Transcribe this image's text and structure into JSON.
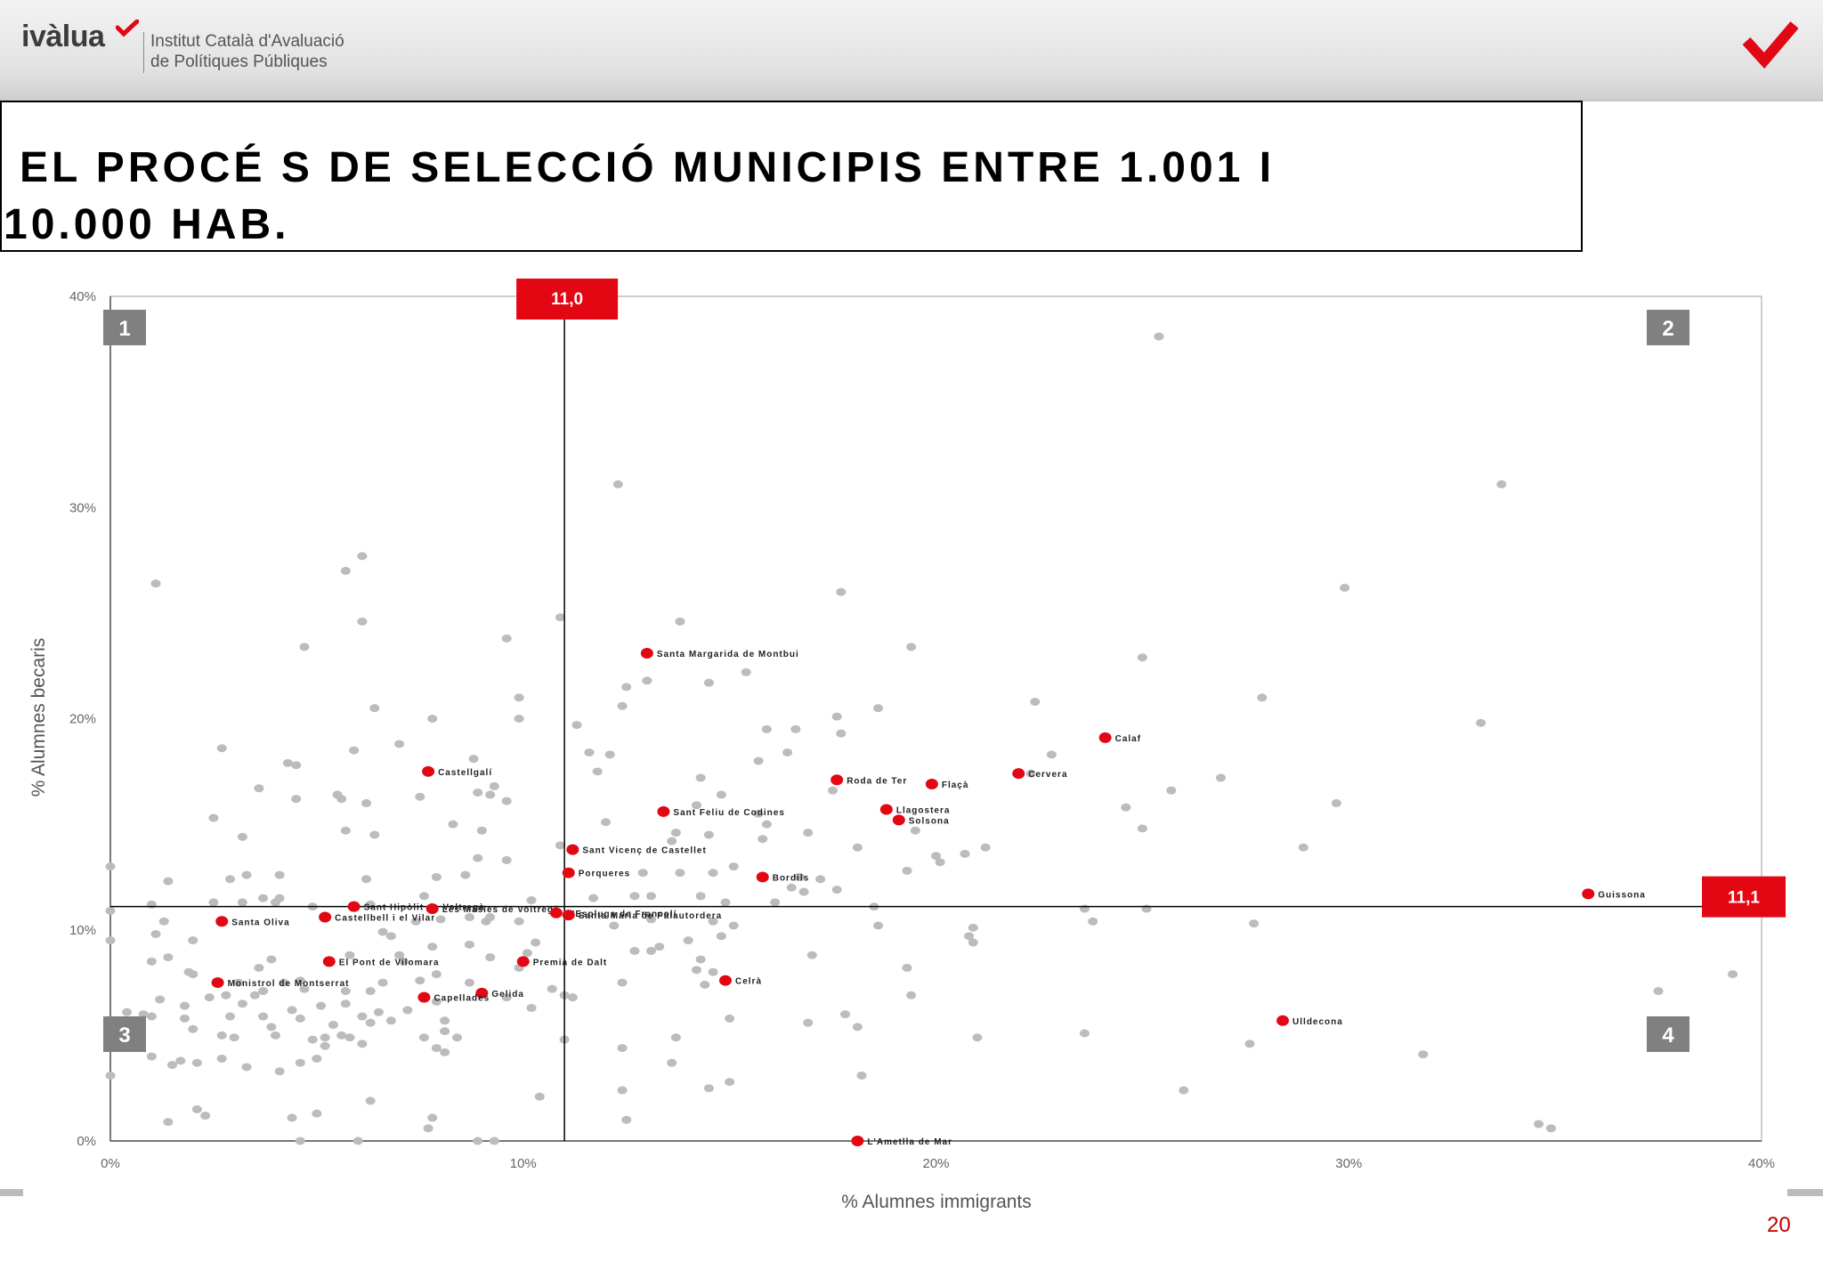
{
  "header": {
    "logo_text": "ivàlua",
    "institution_line1": "Institut Català d'Avaluació",
    "institution_line2": "de Polítiques Públiques"
  },
  "title": {
    "line1": "EL PROCÉ S DE SELECCIÓ MUNICIPIS ENTRE 1.001 I",
    "line2": "10.000 HAB."
  },
  "page_number": "20",
  "colors": {
    "accent": "#e30613",
    "grey_point": "#bcbcbc",
    "red_point": "#e30613"
  },
  "chart_data": {
    "type": "scatter",
    "xlabel": "% Alumnes immigrants",
    "ylabel": "% Alumnes becaris",
    "xlim": [
      0,
      40
    ],
    "ylim": [
      0,
      40
    ],
    "x_ticks": [
      "0%",
      "10%",
      "20%",
      "30%",
      "40%"
    ],
    "y_ticks": [
      "0%",
      "10%",
      "20%",
      "30%",
      "40%"
    ],
    "grid": false,
    "threshold_x": {
      "value": 11.0,
      "label": "11,0"
    },
    "threshold_y": {
      "value": 11.1,
      "label": "11,1"
    },
    "quadrants": [
      "1",
      "2",
      "3",
      "4"
    ],
    "highlighted": [
      {
        "name": "Santa Margarida de Montbui",
        "x": 13.0,
        "y": 23.1
      },
      {
        "name": "Calaf",
        "x": 24.1,
        "y": 19.1
      },
      {
        "name": "Roda de Ter",
        "x": 17.6,
        "y": 17.1
      },
      {
        "name": "Flaçà",
        "x": 19.9,
        "y": 16.9
      },
      {
        "name": "Cervera",
        "x": 22.0,
        "y": 17.4
      },
      {
        "name": "Castellgalí",
        "x": 7.7,
        "y": 17.5
      },
      {
        "name": "Sant Feliu de Codines",
        "x": 13.4,
        "y": 15.6
      },
      {
        "name": "Llagostera",
        "x": 18.8,
        "y": 15.7
      },
      {
        "name": "Solsona",
        "x": 19.1,
        "y": 15.2
      },
      {
        "name": "Sant Vicenç de Castellet",
        "x": 11.2,
        "y": 13.8
      },
      {
        "name": "Porqueres",
        "x": 11.1,
        "y": 12.7
      },
      {
        "name": "Bordils",
        "x": 15.8,
        "y": 12.5
      },
      {
        "name": "Sant Hipòlit de Voltregà",
        "x": 5.9,
        "y": 11.1
      },
      {
        "name": "Les Masies de Voltregà",
        "x": 7.8,
        "y": 11.0
      },
      {
        "name": "Santa Oliva",
        "x": 2.7,
        "y": 10.4
      },
      {
        "name": "L'Espluga de Francolí",
        "x": 10.8,
        "y": 10.8
      },
      {
        "name": "Santa Maria de Palautordera",
        "x": 11.1,
        "y": 10.7
      },
      {
        "name": "Castellbell i el Vilar",
        "x": 5.2,
        "y": 10.6
      },
      {
        "name": "Premià de Dalt",
        "x": 10.0,
        "y": 8.5
      },
      {
        "name": "El Pont de Vilomara",
        "x": 5.3,
        "y": 8.5
      },
      {
        "name": "Celrà",
        "x": 14.9,
        "y": 7.6
      },
      {
        "name": "Monistrol de Montserrat",
        "x": 2.6,
        "y": 7.5
      },
      {
        "name": "Gelida",
        "x": 9.0,
        "y": 7.0
      },
      {
        "name": "Capellades",
        "x": 7.6,
        "y": 6.8
      },
      {
        "name": "Guissona",
        "x": 35.8,
        "y": 11.7
      },
      {
        "name": "Ulldecona",
        "x": 28.4,
        "y": 5.7
      },
      {
        "name": "L'Ametlla de Mar",
        "x": 18.1,
        "y": 0.0
      }
    ],
    "others": [
      [
        1.1,
        26.4
      ],
      [
        6.1,
        27.7
      ],
      [
        5.7,
        27.0
      ],
      [
        6.1,
        24.6
      ],
      [
        4.7,
        23.4
      ],
      [
        12.3,
        31.1
      ],
      [
        33.7,
        31.1
      ],
      [
        25.4,
        38.1
      ],
      [
        13.8,
        24.6
      ],
      [
        17.7,
        26.0
      ],
      [
        19.4,
        23.4
      ],
      [
        25.0,
        22.9
      ],
      [
        29.9,
        26.2
      ],
      [
        27.9,
        21.0
      ],
      [
        22.4,
        20.8
      ],
      [
        15.4,
        22.2
      ],
      [
        14.5,
        21.7
      ],
      [
        12.5,
        21.5
      ],
      [
        13.0,
        21.8
      ],
      [
        12.4,
        20.6
      ],
      [
        9.9,
        21.0
      ],
      [
        9.6,
        23.8
      ],
      [
        10.9,
        24.8
      ],
      [
        6.4,
        20.5
      ],
      [
        7.8,
        20.0
      ],
      [
        9.9,
        20.0
      ],
      [
        11.3,
        19.7
      ],
      [
        15.9,
        19.5
      ],
      [
        16.6,
        19.5
      ],
      [
        17.6,
        20.1
      ],
      [
        17.7,
        19.3
      ],
      [
        18.6,
        20.5
      ],
      [
        33.2,
        19.8
      ],
      [
        22.8,
        18.3
      ],
      [
        2.7,
        18.6
      ],
      [
        4.3,
        17.9
      ],
      [
        4.5,
        17.8
      ],
      [
        5.9,
        18.5
      ],
      [
        7.0,
        18.8
      ],
      [
        8.8,
        18.1
      ],
      [
        12.1,
        18.3
      ],
      [
        16.4,
        18.4
      ],
      [
        11.8,
        17.5
      ],
      [
        14.3,
        17.2
      ],
      [
        22.3,
        17.4
      ],
      [
        26.9,
        17.2
      ],
      [
        25.7,
        16.6
      ],
      [
        29.7,
        16.0
      ],
      [
        24.6,
        15.8
      ],
      [
        3.6,
        16.7
      ],
      [
        4.5,
        16.2
      ],
      [
        5.5,
        16.4
      ],
      [
        5.6,
        16.2
      ],
      [
        6.2,
        16.0
      ],
      [
        7.5,
        16.3
      ],
      [
        8.9,
        16.5
      ],
      [
        9.3,
        16.8
      ],
      [
        9.2,
        16.4
      ],
      [
        9.6,
        16.1
      ],
      [
        14.8,
        16.4
      ],
      [
        17.5,
        16.6
      ],
      [
        2.5,
        15.3
      ],
      [
        3.2,
        14.4
      ],
      [
        5.7,
        14.7
      ],
      [
        6.4,
        14.5
      ],
      [
        8.3,
        15.0
      ],
      [
        9.0,
        14.7
      ],
      [
        12.0,
        15.1
      ],
      [
        13.7,
        14.6
      ],
      [
        14.5,
        14.5
      ],
      [
        15.7,
        15.5
      ],
      [
        15.9,
        15.0
      ],
      [
        16.9,
        14.6
      ],
      [
        19.5,
        14.7
      ],
      [
        25.0,
        14.8
      ],
      [
        15.8,
        14.3
      ],
      [
        21.2,
        13.9
      ],
      [
        20.7,
        13.6
      ],
      [
        18.1,
        13.9
      ],
      [
        20.0,
        13.5
      ],
      [
        20.1,
        13.2
      ],
      [
        28.9,
        13.9
      ],
      [
        13.6,
        14.2
      ],
      [
        10.9,
        14.0
      ],
      [
        8.9,
        13.4
      ],
      [
        9.6,
        13.3
      ],
      [
        4.1,
        12.6
      ],
      [
        3.3,
        12.6
      ],
      [
        2.9,
        12.4
      ],
      [
        1.4,
        12.3
      ],
      [
        0.0,
        13.0
      ],
      [
        6.2,
        12.4
      ],
      [
        7.9,
        12.5
      ],
      [
        8.6,
        12.6
      ],
      [
        13.8,
        12.7
      ],
      [
        14.6,
        12.7
      ],
      [
        16.7,
        12.5
      ],
      [
        17.2,
        12.4
      ],
      [
        19.3,
        12.8
      ],
      [
        15.1,
        13.0
      ],
      [
        16.5,
        12.0
      ],
      [
        16.8,
        11.8
      ],
      [
        17.6,
        11.9
      ],
      [
        1.0,
        11.2
      ],
      [
        2.5,
        11.3
      ],
      [
        3.2,
        11.3
      ],
      [
        3.7,
        11.5
      ],
      [
        4.0,
        11.3
      ],
      [
        4.1,
        11.5
      ],
      [
        4.9,
        11.1
      ],
      [
        6.3,
        11.2
      ],
      [
        7.6,
        11.6
      ],
      [
        10.2,
        11.4
      ],
      [
        11.7,
        11.5
      ],
      [
        12.7,
        11.6
      ],
      [
        13.1,
        11.6
      ],
      [
        14.3,
        11.6
      ],
      [
        14.9,
        11.3
      ],
      [
        16.1,
        11.3
      ],
      [
        18.5,
        11.1
      ],
      [
        23.6,
        11.0
      ],
      [
        25.1,
        11.0
      ],
      [
        0.0,
        10.9
      ],
      [
        1.3,
        10.4
      ],
      [
        7.4,
        10.4
      ],
      [
        8.0,
        10.5
      ],
      [
        8.7,
        10.6
      ],
      [
        9.2,
        10.6
      ],
      [
        9.1,
        10.4
      ],
      [
        9.9,
        10.4
      ],
      [
        12.2,
        10.2
      ],
      [
        13.1,
        10.5
      ],
      [
        14.6,
        10.4
      ],
      [
        15.1,
        10.2
      ],
      [
        18.6,
        10.2
      ],
      [
        23.8,
        10.4
      ],
      [
        20.9,
        10.1
      ],
      [
        27.7,
        10.3
      ],
      [
        0.0,
        9.5
      ],
      [
        1.1,
        9.8
      ],
      [
        1.4,
        8.7
      ],
      [
        2.0,
        9.5
      ],
      [
        6.6,
        9.9
      ],
      [
        6.8,
        9.7
      ],
      [
        7.0,
        8.8
      ],
      [
        7.8,
        9.2
      ],
      [
        8.7,
        9.3
      ],
      [
        10.3,
        9.4
      ],
      [
        13.3,
        9.2
      ],
      [
        14.0,
        9.5
      ],
      [
        14.8,
        9.7
      ],
      [
        20.8,
        9.7
      ],
      [
        20.9,
        9.4
      ],
      [
        1.0,
        8.5
      ],
      [
        1.9,
        8.0
      ],
      [
        3.6,
        8.2
      ],
      [
        3.9,
        8.6
      ],
      [
        5.8,
        8.8
      ],
      [
        7.1,
        8.5
      ],
      [
        9.2,
        8.7
      ],
      [
        10.1,
        8.9
      ],
      [
        12.7,
        9.0
      ],
      [
        13.1,
        9.0
      ],
      [
        14.3,
        8.6
      ],
      [
        14.2,
        8.1
      ],
      [
        14.6,
        8.0
      ],
      [
        17.0,
        8.8
      ],
      [
        19.3,
        8.2
      ],
      [
        2.0,
        7.9
      ],
      [
        3.1,
        7.5
      ],
      [
        3.7,
        7.1
      ],
      [
        4.2,
        7.5
      ],
      [
        4.6,
        7.6
      ],
      [
        4.7,
        7.2
      ],
      [
        5.7,
        7.1
      ],
      [
        6.3,
        7.1
      ],
      [
        6.6,
        7.5
      ],
      [
        7.5,
        7.6
      ],
      [
        7.9,
        7.9
      ],
      [
        8.7,
        7.5
      ],
      [
        9.9,
        8.2
      ],
      [
        10.7,
        7.2
      ],
      [
        11.0,
        6.9
      ],
      [
        11.2,
        6.8
      ],
      [
        12.4,
        7.5
      ],
      [
        14.4,
        7.4
      ],
      [
        19.4,
        6.9
      ],
      [
        1.2,
        6.7
      ],
      [
        1.8,
        6.4
      ],
      [
        2.4,
        6.8
      ],
      [
        2.8,
        6.9
      ],
      [
        3.2,
        6.5
      ],
      [
        3.5,
        6.9
      ],
      [
        4.4,
        6.2
      ],
      [
        5.1,
        6.4
      ],
      [
        5.7,
        6.5
      ],
      [
        6.5,
        6.1
      ],
      [
        7.2,
        6.2
      ],
      [
        7.9,
        6.6
      ],
      [
        9.6,
        6.8
      ],
      [
        10.2,
        6.3
      ],
      [
        1.0,
        5.9
      ],
      [
        1.8,
        5.8
      ],
      [
        2.9,
        5.9
      ],
      [
        3.7,
        5.9
      ],
      [
        4.6,
        5.8
      ],
      [
        5.4,
        5.5
      ],
      [
        6.1,
        5.9
      ],
      [
        6.3,
        5.6
      ],
      [
        6.8,
        5.7
      ],
      [
        8.1,
        5.7
      ],
      [
        15.0,
        5.8
      ],
      [
        16.9,
        5.6
      ],
      [
        17.8,
        6.0
      ],
      [
        18.1,
        5.4
      ],
      [
        2.0,
        5.3
      ],
      [
        2.7,
        5.0
      ],
      [
        3.0,
        4.9
      ],
      [
        3.9,
        5.4
      ],
      [
        4.0,
        5.0
      ],
      [
        4.9,
        4.8
      ],
      [
        5.2,
        4.9
      ],
      [
        5.6,
        5.0
      ],
      [
        5.8,
        4.9
      ],
      [
        7.6,
        4.9
      ],
      [
        8.1,
        5.2
      ],
      [
        8.4,
        4.9
      ],
      [
        11.0,
        4.8
      ],
      [
        13.7,
        4.9
      ],
      [
        21.0,
        4.9
      ],
      [
        23.6,
        5.1
      ],
      [
        27.6,
        4.6
      ],
      [
        1.0,
        4.0
      ],
      [
        1.7,
        3.8
      ],
      [
        2.7,
        3.9
      ],
      [
        3.3,
        3.5
      ],
      [
        4.1,
        3.3
      ],
      [
        4.6,
        3.7
      ],
      [
        5.0,
        3.9
      ],
      [
        5.2,
        4.5
      ],
      [
        6.1,
        4.6
      ],
      [
        7.9,
        4.4
      ],
      [
        8.1,
        4.2
      ],
      [
        12.4,
        4.4
      ],
      [
        13.6,
        3.7
      ],
      [
        18.2,
        3.1
      ],
      [
        31.8,
        4.1
      ],
      [
        1.5,
        3.6
      ],
      [
        2.1,
        3.7
      ],
      [
        12.4,
        2.4
      ],
      [
        14.5,
        2.5
      ],
      [
        15.0,
        2.8
      ],
      [
        26.0,
        2.4
      ],
      [
        6.3,
        1.9
      ],
      [
        10.4,
        2.1
      ],
      [
        2.1,
        1.5
      ],
      [
        2.3,
        1.2
      ],
      [
        1.4,
        0.9
      ],
      [
        4.4,
        1.1
      ],
      [
        5.0,
        1.3
      ],
      [
        7.8,
        1.1
      ],
      [
        7.7,
        0.6
      ],
      [
        12.5,
        1.0
      ],
      [
        34.6,
        0.8
      ],
      [
        34.9,
        0.6
      ],
      [
        4.6,
        0.0
      ],
      [
        6.0,
        0.0
      ],
      [
        8.9,
        0.0
      ],
      [
        9.3,
        0.0
      ],
      [
        0.0,
        3.1
      ],
      [
        37.5,
        7.1
      ],
      [
        39.3,
        7.9
      ],
      [
        0.4,
        6.1
      ],
      [
        0.8,
        6.0
      ],
      [
        11.6,
        18.4
      ],
      [
        15.7,
        18.0
      ],
      [
        14.2,
        15.9
      ],
      [
        12.9,
        12.7
      ]
    ]
  }
}
